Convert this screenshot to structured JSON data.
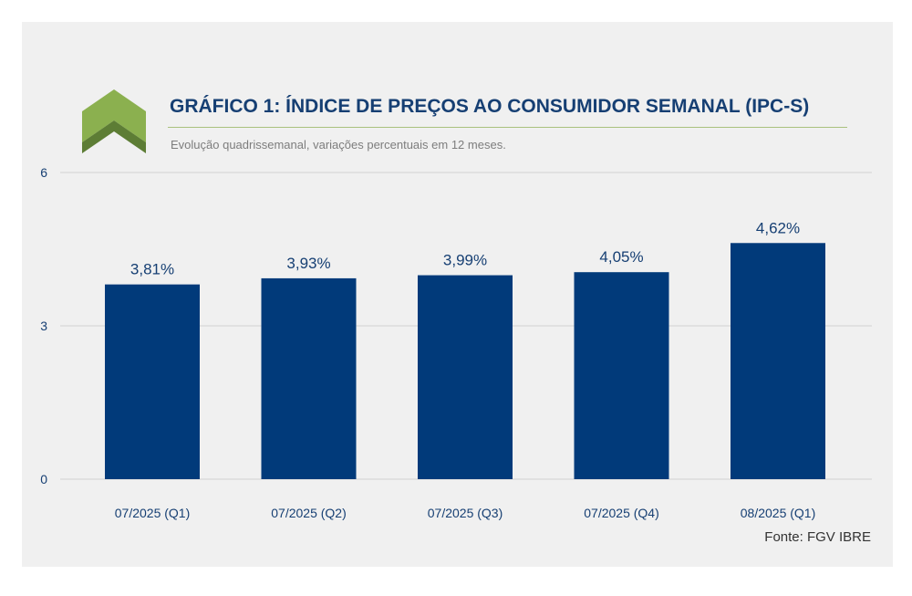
{
  "title": "GRÁFICO 1: ÍNDICE DE PREÇOS AO CONSUMIDOR SEMANAL (IPC-S)",
  "subtitle": "Evolução quadrissemanal, variações percentuais em 12 meses.",
  "source": "Fonte: FGV IBRE",
  "logo_icon": "chevron-up-icon",
  "colors": {
    "bar": "#013a7a",
    "text": "#163f73",
    "grid": "#d2d2d2",
    "logo_light": "#8bb04f",
    "logo_dark": "#5d7d35"
  },
  "chart_data": {
    "type": "bar",
    "categories": [
      "07/2025 (Q1)",
      "07/2025 (Q2)",
      "07/2025 (Q3)",
      "07/2025 (Q4)",
      "08/2025 (Q1)"
    ],
    "values": [
      3.81,
      3.93,
      3.99,
      4.05,
      4.62
    ],
    "data_labels": [
      "3,81%",
      "3,93%",
      "3,99%",
      "4,05%",
      "4,62%"
    ],
    "yticks": [
      0,
      3,
      6
    ],
    "ylim": [
      0,
      6
    ],
    "grid": true,
    "legend": "none"
  }
}
